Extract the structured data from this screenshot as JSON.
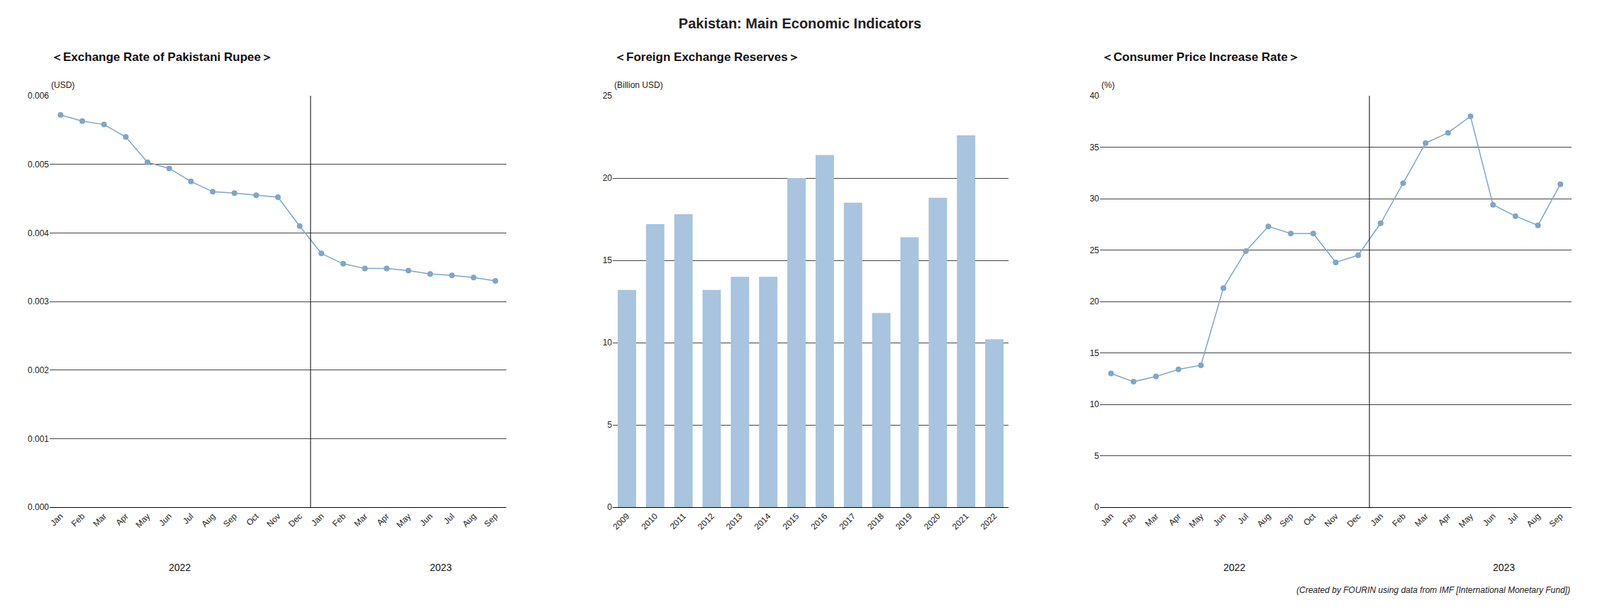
{
  "title": "Pakistan: Main Economic Indicators",
  "annotations": [
    "(Created by FOURIN using data from IMF [International Monetary Fund])"
  ],
  "chart_data": [
    {
      "type": "line",
      "title": "＜Exchange Rate of Pakistani Rupee＞",
      "ylabel": "(USD)",
      "categories": [
        "Jan",
        "Feb",
        "Mar",
        "Apr",
        "May",
        "Jun",
        "Jul",
        "Aug",
        "Sep",
        "Oct",
        "Nov",
        "Dec",
        "Jan",
        "Feb",
        "Mar",
        "Apr",
        "May",
        "Jun",
        "Jul",
        "Aug",
        "Sep"
      ],
      "values": [
        0.00572,
        0.00563,
        0.00558,
        0.0054,
        0.00503,
        0.00494,
        0.00475,
        0.0046,
        0.00458,
        0.00455,
        0.00452,
        0.0041,
        0.0037,
        0.00355,
        0.00348,
        0.00348,
        0.00345,
        0.0034,
        0.00338,
        0.00335,
        0.0033
      ],
      "color": "#7EA6C8",
      "ylim": [
        0.0,
        0.006
      ],
      "yticks": [
        {
          "value": 0,
          "label": "0.000"
        },
        0.001,
        0.002,
        0.003,
        0.004,
        0.005,
        0.006
      ],
      "grid": true,
      "annotations": [
        "2022",
        "2023"
      ]
    },
    {
      "type": "bar",
      "title": "＜Foreign Exchange Reserves＞",
      "ylabel": "(Billion USD)",
      "categories": [
        "2009",
        "2010",
        "2011",
        "2012",
        "2013",
        "2014",
        "2015",
        "2016",
        "2017",
        "2018",
        "2019",
        "2020",
        "2021",
        "2022"
      ],
      "values": [
        13.2,
        17.2,
        17.8,
        13.2,
        14.0,
        14.0,
        20.0,
        21.4,
        18.5,
        11.8,
        16.4,
        18.8,
        22.6,
        10.2
      ],
      "color": "#A8C4DE",
      "ylim": [
        0,
        25
      ],
      "yticks": [
        0,
        5,
        10,
        15,
        20,
        25
      ],
      "grid": true
    },
    {
      "type": "line",
      "title": "＜Consumer Price Increase Rate＞",
      "ylabel": "(%)",
      "categories": [
        "Jan",
        "Feb",
        "Mar",
        "Apr",
        "May",
        "Jun",
        "Jul",
        "Aug",
        "Sep",
        "Oct",
        "Nov",
        "Dec",
        "Jan",
        "Feb",
        "Mar",
        "Apr",
        "May",
        "Jun",
        "Jul",
        "Aug",
        "Sep"
      ],
      "values": [
        13.0,
        12.2,
        12.7,
        13.4,
        13.8,
        21.3,
        24.9,
        27.3,
        26.6,
        26.6,
        23.8,
        24.5,
        27.6,
        31.5,
        35.4,
        36.4,
        38.0,
        29.4,
        28.3,
        27.4,
        31.4
      ],
      "color": "#7EA6C8",
      "ylim": [
        0,
        40
      ],
      "yticks": [
        0,
        5,
        10,
        15,
        20,
        25,
        30,
        35,
        40
      ],
      "grid": true,
      "annotations": [
        "2022",
        "2023"
      ]
    }
  ]
}
